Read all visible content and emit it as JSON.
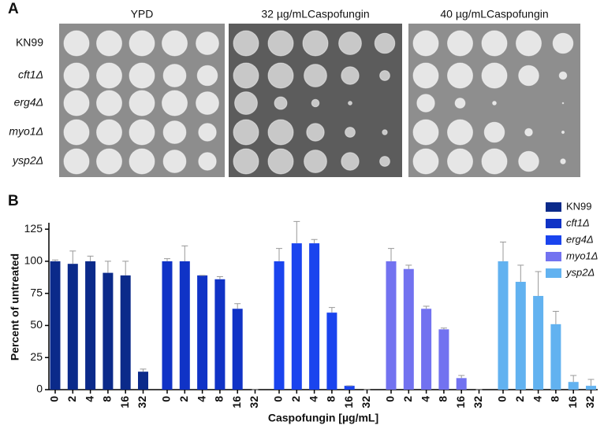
{
  "panel_a": {
    "label": "A",
    "conditions": [
      "YPD",
      "32 µg/mLCaspofungin",
      "40 µg/mLCaspofungin"
    ],
    "strains": [
      "KN99",
      "cft1Δ",
      "erg4Δ",
      "myo1Δ",
      "ysp2Δ"
    ]
  },
  "chart_data": {
    "type": "bar",
    "panel_label": "B",
    "x_label": "Caspofungin [µg/mL]",
    "y_label": "Percent of untreated",
    "categories": [
      "0",
      "2",
      "4",
      "8",
      "16",
      "32"
    ],
    "ylim": [
      0,
      130
    ],
    "yticks": [
      0,
      25,
      50,
      75,
      100,
      125
    ],
    "legend": "top-right",
    "series": [
      {
        "name": "KN99",
        "color": "#0b2a8a",
        "values": [
          100,
          98,
          100,
          91,
          89,
          14
        ],
        "errors": [
          1,
          10,
          4,
          9,
          11,
          2
        ]
      },
      {
        "name": "cft1Δ",
        "color": "#1033c6",
        "values": [
          100,
          100,
          89,
          86,
          63,
          0
        ],
        "errors": [
          2,
          12,
          0,
          2,
          4,
          0
        ]
      },
      {
        "name": "erg4Δ",
        "color": "#1a44ee",
        "values": [
          100,
          114,
          114,
          60,
          3,
          0
        ],
        "errors": [
          10,
          17,
          3,
          4,
          0,
          0
        ]
      },
      {
        "name": "myo1Δ",
        "color": "#7272f0",
        "values": [
          100,
          94,
          63,
          47,
          9,
          0
        ],
        "errors": [
          10,
          3,
          2,
          1,
          2,
          0
        ]
      },
      {
        "name": "ysp2Δ",
        "color": "#62b2f0",
        "values": [
          100,
          84,
          73,
          51,
          6,
          3
        ],
        "errors": [
          15,
          13,
          19,
          10,
          5,
          5
        ]
      }
    ]
  }
}
